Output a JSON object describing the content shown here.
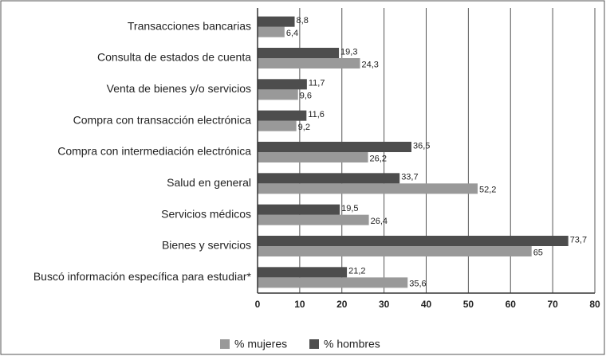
{
  "chart_data": {
    "type": "hbar",
    "categories": [
      "Transacciones bancarias",
      "Consulta de estados de cuenta",
      "Venta de bienes y/o servicios",
      "Compra con transacción electrónica",
      "Compra con intermediación electrónica",
      "Salud en general",
      "Servicios médicos",
      "Bienes y servicios",
      "Buscó información específica para estudiar*"
    ],
    "series": [
      {
        "name": "% mujeres",
        "color": "#999999",
        "values": [
          6.4,
          24.3,
          9.6,
          9.2,
          26.2,
          52.2,
          26.4,
          65,
          35.6
        ],
        "value_labels": [
          "6,4",
          "24,3",
          "9,6",
          "9,2",
          "26,2",
          "52,2",
          "26,4",
          "65",
          "35,6"
        ]
      },
      {
        "name": "% hombres",
        "color": "#4d4d4d",
        "values": [
          8.8,
          19.3,
          11.7,
          11.6,
          36.5,
          33.7,
          19.5,
          73.7,
          21.2
        ],
        "value_labels": [
          "8,8",
          "19,3",
          "11,7",
          "11,6",
          "36,5",
          "33,7",
          "19,5",
          "73,7",
          "21,2"
        ]
      }
    ],
    "xlim": [
      0,
      80
    ],
    "xticks": [
      0,
      10,
      20,
      30,
      40,
      50,
      60,
      70,
      80
    ],
    "grid": true,
    "legend": "bottom"
  }
}
